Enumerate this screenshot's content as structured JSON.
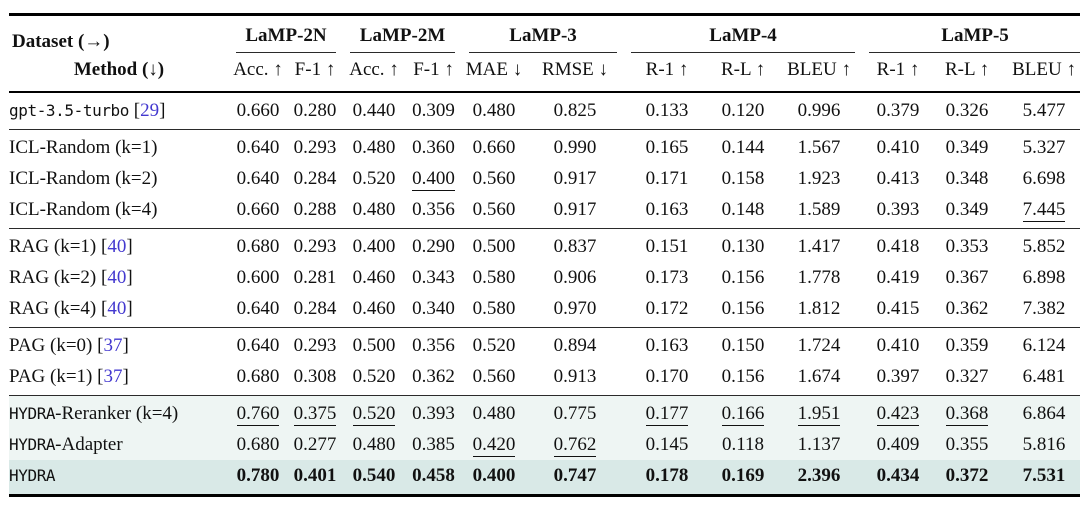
{
  "table": {
    "corner_top": "Dataset (→)",
    "corner_bottom": "Method (↓)",
    "groups": [
      {
        "label": "LaMP-2N",
        "cols": [
          "Acc. ↑",
          "F-1 ↑"
        ]
      },
      {
        "label": "LaMP-2M",
        "cols": [
          "Acc. ↑",
          "F-1 ↑"
        ]
      },
      {
        "label": "LaMP-3",
        "cols": [
          "MAE ↓",
          "RMSE ↓"
        ]
      },
      {
        "label": "LaMP-4",
        "cols": [
          "R-1 ↑",
          "R-L ↑",
          "BLEU ↑"
        ]
      },
      {
        "label": "LaMP-5",
        "cols": [
          "R-1 ↑",
          "R-L ↑",
          "BLEU ↑"
        ]
      }
    ],
    "sections": [
      {
        "rows": [
          {
            "method": {
              "mono": "gpt-3.5-turbo",
              "cite": "29"
            },
            "values": [
              "0.660",
              "0.280",
              "0.440",
              "0.309",
              "0.480",
              "0.825",
              "0.133",
              "0.120",
              "0.996",
              "0.379",
              "0.326",
              "5.477"
            ],
            "underline": [],
            "bold": false
          }
        ]
      },
      {
        "rows": [
          {
            "method": {
              "text": "ICL-Random (k=1)"
            },
            "values": [
              "0.640",
              "0.293",
              "0.480",
              "0.360",
              "0.660",
              "0.990",
              "0.165",
              "0.144",
              "1.567",
              "0.410",
              "0.349",
              "5.327"
            ],
            "underline": [],
            "bold": false
          },
          {
            "method": {
              "text": "ICL-Random (k=2)"
            },
            "values": [
              "0.640",
              "0.284",
              "0.520",
              "0.400",
              "0.560",
              "0.917",
              "0.171",
              "0.158",
              "1.923",
              "0.413",
              "0.348",
              "6.698"
            ],
            "underline": [
              3
            ],
            "bold": false
          },
          {
            "method": {
              "text": "ICL-Random (k=4)"
            },
            "values": [
              "0.660",
              "0.288",
              "0.480",
              "0.356",
              "0.560",
              "0.917",
              "0.163",
              "0.148",
              "1.589",
              "0.393",
              "0.349",
              "7.445"
            ],
            "underline": [
              11
            ],
            "bold": false
          }
        ]
      },
      {
        "rows": [
          {
            "method": {
              "text": "RAG (k=1)",
              "cite": "40"
            },
            "values": [
              "0.680",
              "0.293",
              "0.400",
              "0.290",
              "0.500",
              "0.837",
              "0.151",
              "0.130",
              "1.417",
              "0.418",
              "0.353",
              "5.852"
            ],
            "underline": [],
            "bold": false
          },
          {
            "method": {
              "text": "RAG (k=2)",
              "cite": "40"
            },
            "values": [
              "0.600",
              "0.281",
              "0.460",
              "0.343",
              "0.580",
              "0.906",
              "0.173",
              "0.156",
              "1.778",
              "0.419",
              "0.367",
              "6.898"
            ],
            "underline": [],
            "bold": false
          },
          {
            "method": {
              "text": "RAG (k=4)",
              "cite": "40"
            },
            "values": [
              "0.640",
              "0.284",
              "0.460",
              "0.340",
              "0.580",
              "0.970",
              "0.172",
              "0.156",
              "1.812",
              "0.415",
              "0.362",
              "7.382"
            ],
            "underline": [],
            "bold": false
          }
        ]
      },
      {
        "rows": [
          {
            "method": {
              "text": "PAG (k=0)",
              "cite": "37"
            },
            "values": [
              "0.640",
              "0.293",
              "0.500",
              "0.356",
              "0.520",
              "0.894",
              "0.163",
              "0.150",
              "1.724",
              "0.410",
              "0.359",
              "6.124"
            ],
            "underline": [],
            "bold": false
          },
          {
            "method": {
              "text": "PAG (k=1)",
              "cite": "37"
            },
            "values": [
              "0.680",
              "0.308",
              "0.520",
              "0.362",
              "0.560",
              "0.913",
              "0.170",
              "0.156",
              "1.674",
              "0.397",
              "0.327",
              "6.481"
            ],
            "underline": [],
            "bold": false
          }
        ]
      },
      {
        "highlight": true,
        "rows": [
          {
            "method": {
              "mono": "HYDRA",
              "text": "-Reranker (k=4)"
            },
            "values": [
              "0.760",
              "0.375",
              "0.520",
              "0.393",
              "0.480",
              "0.775",
              "0.177",
              "0.166",
              "1.951",
              "0.423",
              "0.368",
              "6.864"
            ],
            "underline": [
              0,
              1,
              2,
              6,
              7,
              8,
              9,
              10
            ],
            "bold": false,
            "row_bg": "#eef5f3"
          },
          {
            "method": {
              "mono": "HYDRA",
              "text": "-Adapter"
            },
            "values": [
              "0.680",
              "0.277",
              "0.480",
              "0.385",
              "0.420",
              "0.762",
              "0.145",
              "0.118",
              "1.137",
              "0.409",
              "0.355",
              "5.816"
            ],
            "underline": [
              4,
              5
            ],
            "bold": false,
            "row_bg": "#eef5f3"
          },
          {
            "method": {
              "mono": "HYDRA"
            },
            "values": [
              "0.780",
              "0.401",
              "0.540",
              "0.458",
              "0.400",
              "0.747",
              "0.178",
              "0.169",
              "2.396",
              "0.434",
              "0.372",
              "7.531"
            ],
            "underline": [],
            "bold": true,
            "row_bg": "#d9e9e7"
          }
        ]
      }
    ]
  },
  "colors": {
    "citation": "#4338cf",
    "highlight_light": "#eef5f3",
    "highlight_dark": "#d9e9e7",
    "rule": "#000000"
  }
}
